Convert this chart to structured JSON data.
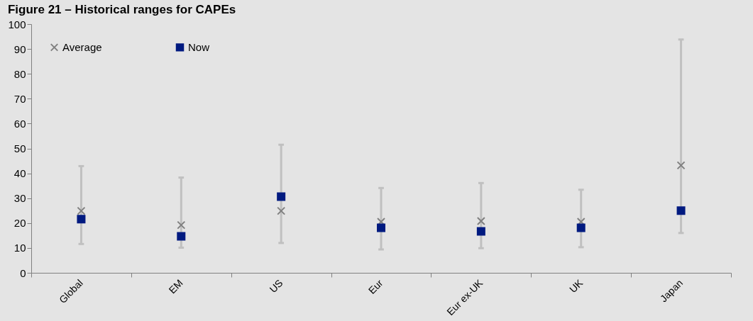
{
  "chart_data": {
    "type": "scatter",
    "title": "Figure 21 – Historical ranges for CAPEs",
    "categories": [
      "Global",
      "EM",
      "US",
      "Eur",
      "Eur ex-UK",
      "UK",
      "Japan"
    ],
    "series": [
      {
        "name": "Average",
        "color": "#808080",
        "marker": "cross",
        "values": [
          24.9,
          19.2,
          24.9,
          20.5,
          20.8,
          20.5,
          43.2
        ],
        "errors": [
          [
            11.6,
            42.9
          ],
          [
            10.1,
            38.3
          ],
          [
            12.0,
            51.5
          ],
          [
            9.4,
            34.1
          ],
          [
            9.9,
            36.1
          ],
          [
            10.3,
            33.4
          ],
          [
            16.0,
            93.8
          ]
        ]
      },
      {
        "name": "Now",
        "color": "#001a80",
        "marker": "square",
        "values": [
          21.6,
          14.7,
          30.6,
          18.1,
          16.7,
          18.1,
          25.0
        ]
      }
    ],
    "ylim": [
      0,
      100
    ],
    "yticks": [
      0,
      10,
      20,
      30,
      40,
      50,
      60,
      70,
      80,
      90,
      100
    ],
    "grid": false,
    "legend": "top left"
  }
}
